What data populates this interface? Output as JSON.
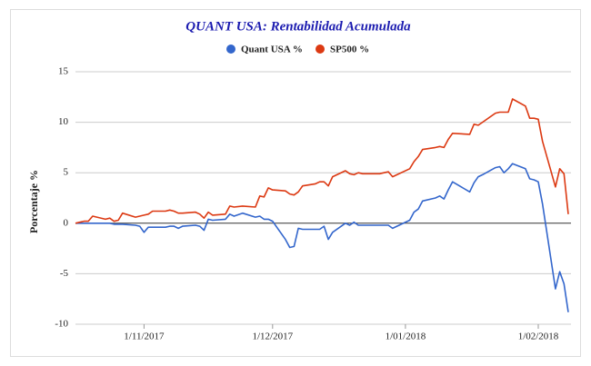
{
  "chart_data": {
    "type": "line",
    "title": "QUANT USA: Rentabilidad Acumulada",
    "y_label": "Porcentaje %",
    "x": [
      "16/10/2017",
      "17/10/2017",
      "18/10/2017",
      "19/10/2017",
      "20/10/2017",
      "23/10/2017",
      "24/10/2017",
      "25/10/2017",
      "26/10/2017",
      "27/10/2017",
      "30/10/2017",
      "31/10/2017",
      "1/11/2017",
      "2/11/2017",
      "3/11/2017",
      "6/11/2017",
      "7/11/2017",
      "8/11/2017",
      "9/11/2017",
      "10/11/2017",
      "13/11/2017",
      "14/11/2017",
      "15/11/2017",
      "16/11/2017",
      "17/11/2017",
      "20/11/2017",
      "21/11/2017",
      "22/11/2017",
      "24/11/2017",
      "27/11/2017",
      "28/11/2017",
      "29/11/2017",
      "30/11/2017",
      "1/12/2017",
      "4/12/2017",
      "5/12/2017",
      "6/12/2017",
      "7/12/2017",
      "8/12/2017",
      "11/12/2017",
      "12/12/2017",
      "13/12/2017",
      "14/12/2017",
      "15/12/2017",
      "18/12/2017",
      "19/12/2017",
      "20/12/2017",
      "21/12/2017",
      "22/12/2017",
      "26/12/2017",
      "27/12/2017",
      "28/12/2017",
      "29/12/2017",
      "2/01/2018",
      "3/01/2018",
      "4/01/2018",
      "5/01/2018",
      "8/01/2018",
      "9/01/2018",
      "10/01/2018",
      "11/01/2018",
      "12/01/2018",
      "16/01/2018",
      "17/01/2018",
      "18/01/2018",
      "19/01/2018",
      "22/01/2018",
      "23/01/2018",
      "24/01/2018",
      "25/01/2018",
      "26/01/2018",
      "29/01/2018",
      "30/01/2018",
      "31/01/2018",
      "1/02/2018",
      "2/02/2018",
      "5/02/2018",
      "6/02/2018",
      "7/02/2018",
      "8/02/2018"
    ],
    "series": [
      {
        "name": "Quant USA %",
        "color": "#3366cc",
        "values": [
          0,
          0,
          0,
          0,
          0,
          0,
          0,
          -0.1,
          -0.1,
          -0.1,
          -0.2,
          -0.3,
          -0.9,
          -0.4,
          -0.4,
          -0.4,
          -0.3,
          -0.3,
          -0.5,
          -0.3,
          -0.2,
          -0.3,
          -0.7,
          0.4,
          0.3,
          0.4,
          0.9,
          0.7,
          1.0,
          0.6,
          0.7,
          0.4,
          0.4,
          0.2,
          -1.6,
          -2.4,
          -2.3,
          -0.5,
          -0.6,
          -0.6,
          -0.6,
          -0.3,
          -1.6,
          -0.9,
          0.0,
          -0.2,
          0.1,
          -0.2,
          -0.2,
          -0.2,
          -0.2,
          -0.2,
          -0.5,
          0.3,
          1.1,
          1.4,
          2.2,
          2.5,
          2.7,
          2.4,
          3.3,
          4.1,
          3.1,
          4.0,
          4.6,
          4.8,
          5.5,
          5.6,
          5.0,
          5.4,
          5.9,
          5.4,
          4.4,
          4.3,
          4.1,
          1.9,
          -6.5,
          -4.8,
          -6.0,
          -8.8
        ]
      },
      {
        "name": "SP500 %",
        "color": "#dc3912",
        "values": [
          0,
          0.1,
          0.2,
          0.2,
          0.7,
          0.4,
          0.5,
          0.2,
          0.3,
          1.0,
          0.6,
          0.7,
          0.8,
          0.9,
          1.2,
          1.2,
          1.3,
          1.2,
          1.0,
          1.0,
          1.1,
          0.9,
          0.5,
          1.1,
          0.8,
          0.9,
          1.7,
          1.6,
          1.7,
          1.6,
          2.7,
          2.6,
          3.5,
          3.3,
          3.2,
          2.9,
          2.8,
          3.1,
          3.7,
          3.9,
          4.1,
          4.1,
          3.7,
          4.6,
          5.2,
          4.9,
          4.8,
          5.0,
          4.9,
          4.9,
          5.0,
          5.1,
          4.6,
          5.4,
          6.1,
          6.6,
          7.3,
          7.5,
          7.6,
          7.5,
          8.3,
          8.9,
          8.8,
          9.8,
          9.7,
          10.0,
          10.9,
          11.0,
          11.0,
          11.0,
          12.3,
          11.6,
          10.4,
          10.4,
          10.3,
          8.1,
          3.6,
          5.4,
          4.9,
          0.9
        ]
      }
    ],
    "xlim": [
      "16/10/2017",
      "8/02/2018"
    ],
    "xticks": [
      "1/11/2017",
      "1/12/2017",
      "1/01/2018",
      "1/02/2018"
    ],
    "ylim": [
      -10,
      15
    ],
    "yticks": [
      -10,
      -5,
      0,
      5,
      10,
      15
    ],
    "grid": true,
    "legend": "top"
  }
}
